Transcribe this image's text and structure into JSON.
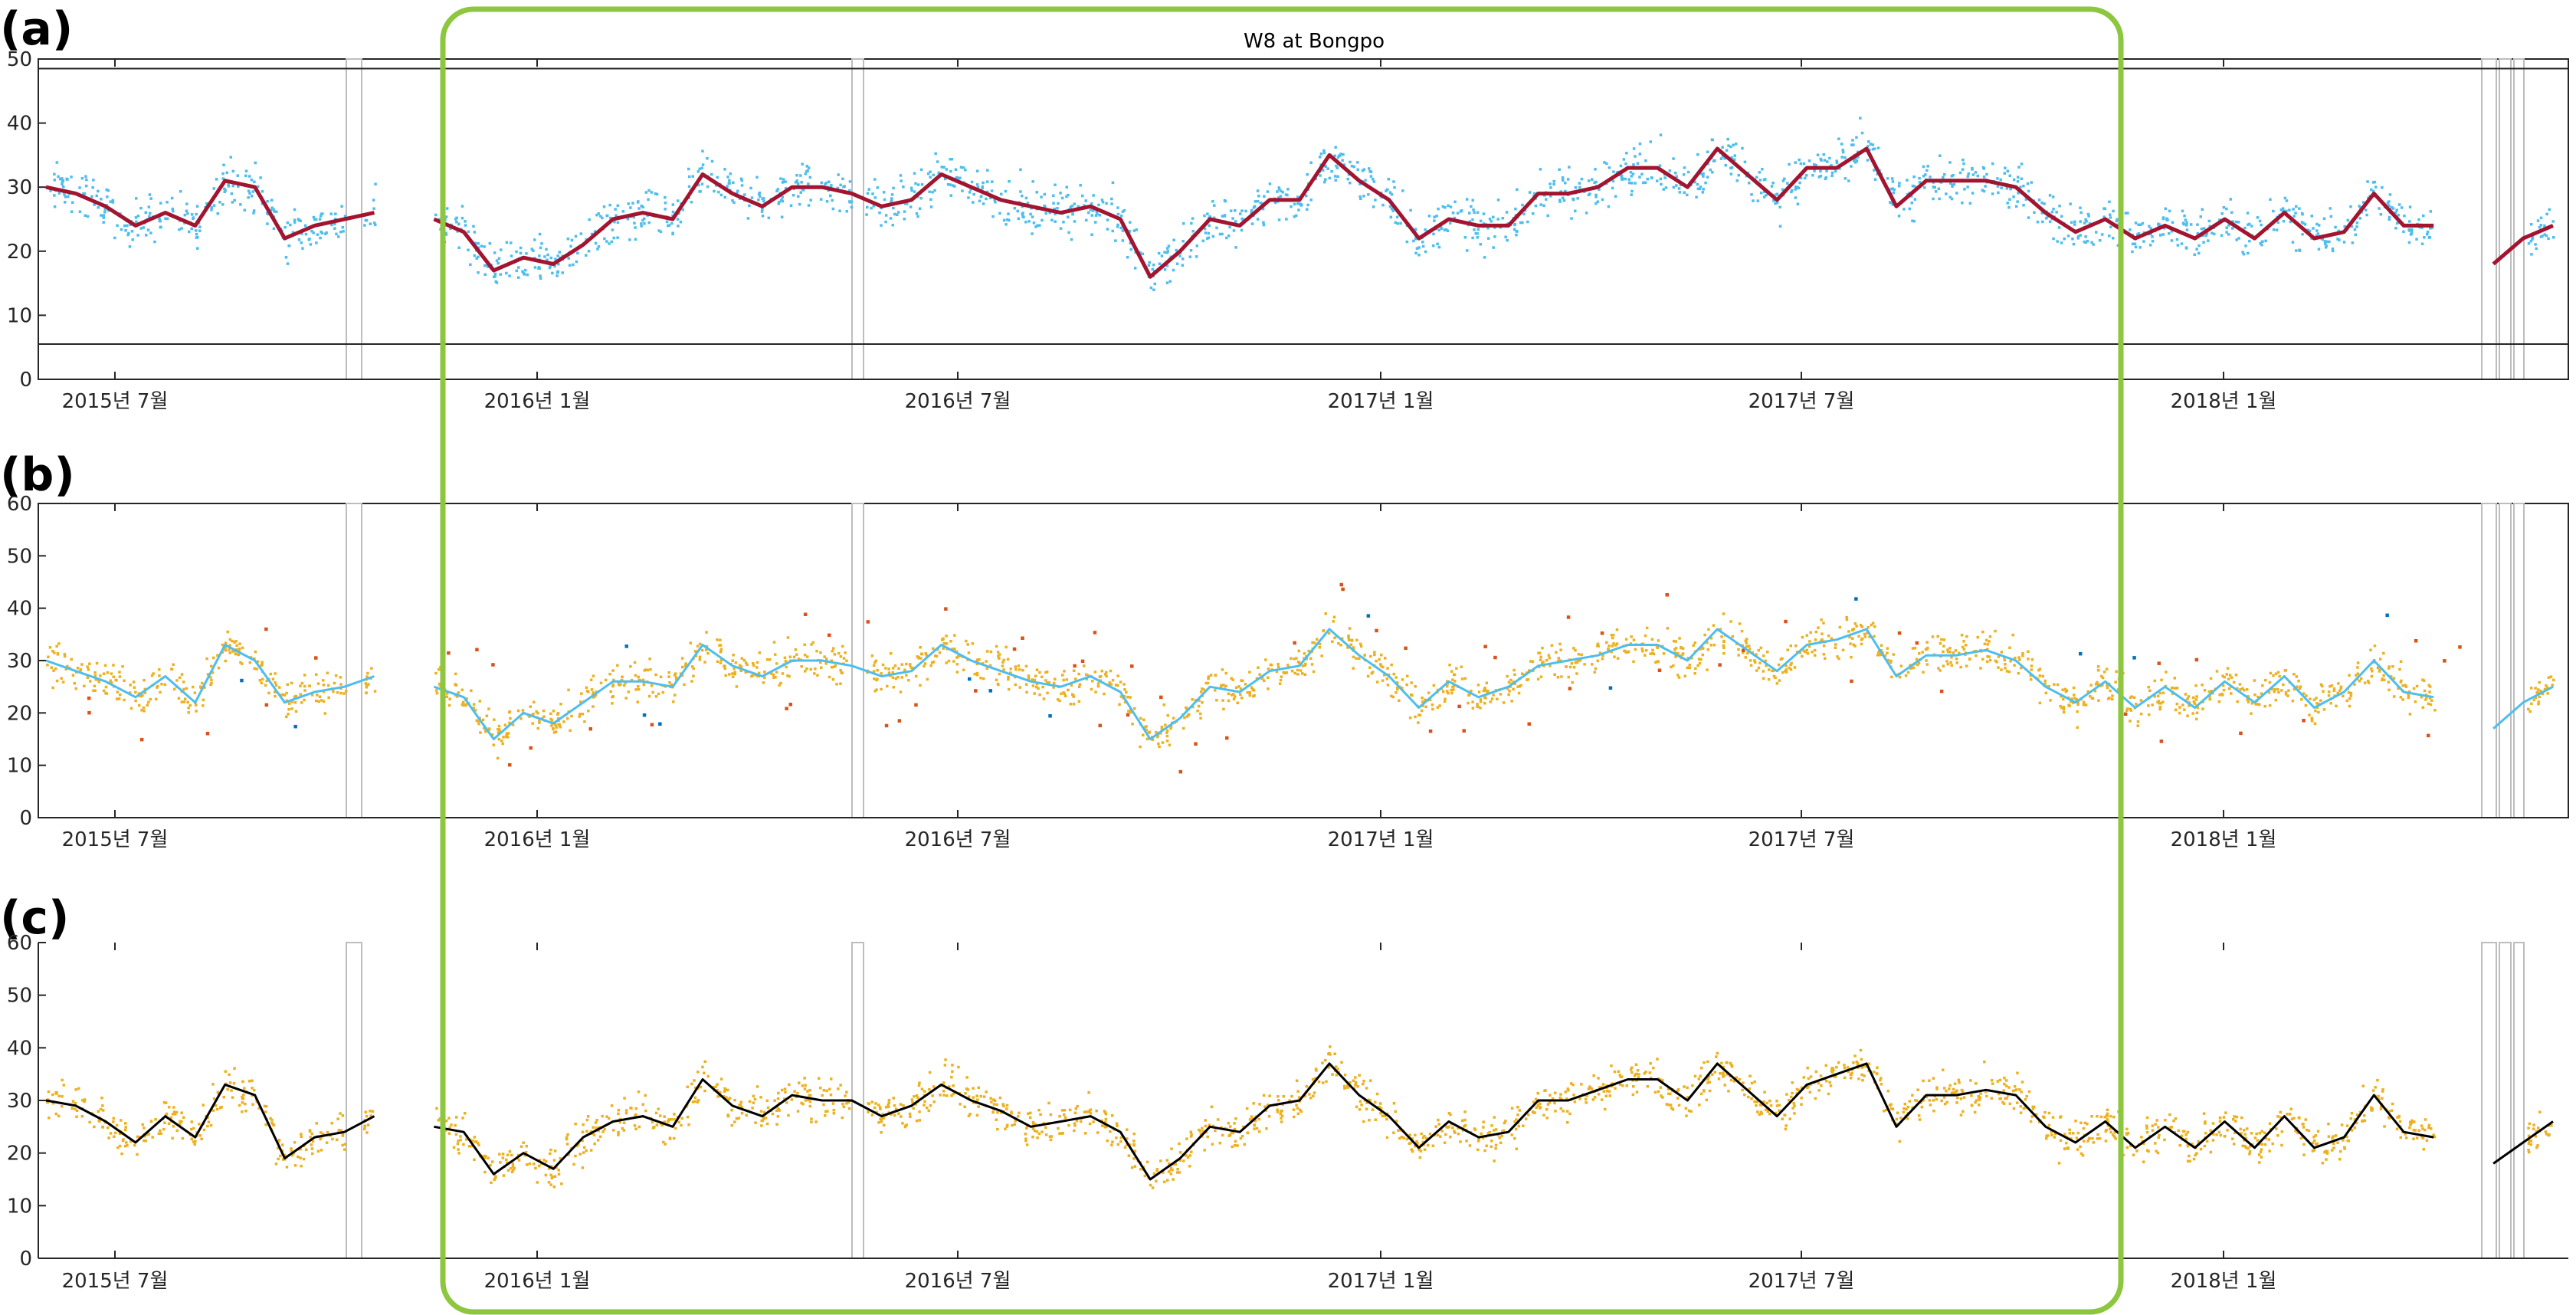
{
  "chart_data": [
    {
      "panel": "(a)",
      "type": "scatter",
      "title": "W8 at Bongpo",
      "ylim": [
        0,
        50
      ],
      "yticks": [
        0,
        10,
        20,
        30,
        40,
        50
      ],
      "xticks": [
        "2015년 7월",
        "2016년 1월",
        "2016년 7월",
        "2017년 1월",
        "2017년 7월",
        "2018년 1월"
      ],
      "horizontal_lines": [
        5.5,
        48.5
      ],
      "series": [
        {
          "color": "#4DBEEE",
          "kind": "points"
        },
        {
          "color": "#A2142F",
          "kind": "line",
          "values": [
            30,
            29,
            27,
            24,
            26,
            24,
            31,
            30,
            22,
            24,
            25,
            26,
            null,
            25,
            23,
            17,
            19,
            18,
            21,
            25,
            26,
            25,
            32,
            29,
            27,
            30,
            30,
            29,
            27,
            28,
            32,
            30,
            28,
            27,
            26,
            27,
            25,
            16,
            20,
            25,
            24,
            28,
            28,
            35,
            31,
            28,
            22,
            25,
            24,
            24,
            29,
            29,
            30,
            33,
            33,
            30,
            36,
            32,
            28,
            33,
            33,
            36,
            27,
            31,
            31,
            31,
            30,
            26,
            23,
            25,
            22,
            24,
            22,
            25,
            22,
            26,
            22,
            23,
            29,
            24,
            24,
            null,
            18,
            22,
            24
          ]
        }
      ]
    },
    {
      "panel": "(b)",
      "type": "scatter",
      "ylim": [
        0,
        60
      ],
      "yticks": [
        0,
        10,
        20,
        30,
        40,
        50,
        60
      ],
      "xticks": [
        "2015년 7월",
        "2016년 1월",
        "2016년 7월",
        "2017년 1월",
        "2017년 7월",
        "2018년 1월"
      ],
      "series": [
        {
          "color": "#EDB120",
          "kind": "points"
        },
        {
          "color": "#D95319",
          "kind": "points"
        },
        {
          "color": "#0072BD",
          "kind": "points"
        },
        {
          "color": "#4DBEEE",
          "kind": "line",
          "values": [
            30,
            28,
            26,
            23,
            27,
            22,
            33,
            30,
            22,
            24,
            25,
            27,
            null,
            25,
            23,
            15,
            20,
            18,
            22,
            26,
            26,
            25,
            33,
            29,
            27,
            30,
            30,
            29,
            27,
            28,
            33,
            30,
            28,
            26,
            25,
            27,
            24,
            15,
            19,
            25,
            24,
            28,
            29,
            36,
            31,
            27,
            21,
            26,
            23,
            25,
            29,
            30,
            31,
            33,
            33,
            30,
            36,
            32,
            28,
            33,
            34,
            36,
            27,
            31,
            31,
            32,
            30,
            25,
            22,
            26,
            21,
            25,
            21,
            26,
            22,
            27,
            21,
            24,
            30,
            24,
            23,
            null,
            17,
            22,
            25
          ]
        }
      ]
    },
    {
      "panel": "(c)",
      "type": "scatter",
      "ylim": [
        0,
        60
      ],
      "yticks": [
        0,
        10,
        20,
        30,
        40,
        50,
        60
      ],
      "xticks": [
        "2015년 7월",
        "2016년 1월",
        "2016년 7월",
        "2017년 1월",
        "2017년 7월",
        "2018년 1월"
      ],
      "series": [
        {
          "color": "#EDB120",
          "kind": "points"
        },
        {
          "color": "#000000",
          "kind": "line",
          "values": [
            30,
            29,
            26,
            22,
            27,
            23,
            33,
            31,
            19,
            23,
            24,
            27,
            null,
            25,
            24,
            16,
            20,
            17,
            23,
            26,
            27,
            25,
            34,
            29,
            27,
            31,
            30,
            30,
            27,
            29,
            33,
            30,
            28,
            25,
            26,
            27,
            24,
            15,
            19,
            25,
            24,
            29,
            30,
            37,
            31,
            27,
            21,
            26,
            23,
            24,
            30,
            30,
            32,
            34,
            34,
            30,
            37,
            32,
            27,
            33,
            35,
            37,
            25,
            31,
            31,
            32,
            31,
            25,
            22,
            26,
            21,
            25,
            21,
            26,
            21,
            27,
            21,
            23,
            31,
            24,
            23,
            null,
            18,
            22,
            26
          ]
        }
      ]
    }
  ]
}
